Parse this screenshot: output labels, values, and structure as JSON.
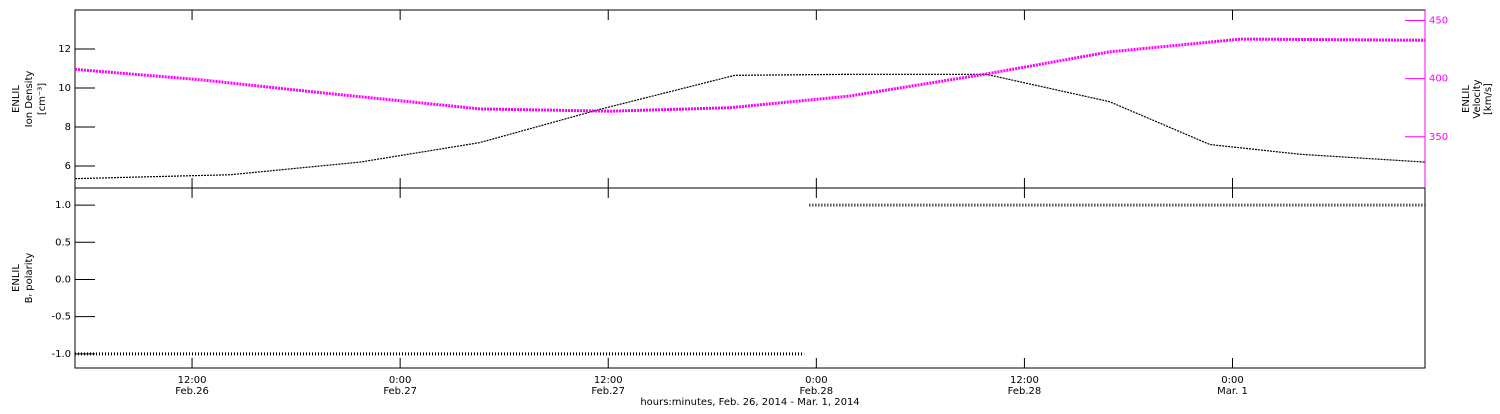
{
  "chart_data": [
    {
      "type": "line",
      "ylabel": [
        "ENLIL",
        "Ion Density",
        "[cm⁻³]"
      ],
      "y2label": [
        "ENLIL",
        "Velocity",
        "[km/s]"
      ],
      "xlim": [
        5.25,
        83.1
      ],
      "ylim": [
        4.87,
        14.0
      ],
      "yticks": [
        6,
        8,
        10,
        12
      ],
      "y2lim": [
        306,
        459
      ],
      "y2ticks": [
        350,
        400,
        450
      ],
      "y2color": "#ff00ff",
      "series": [
        {
          "color": "#000000",
          "x": [
            5.25,
            14.2,
            21.7,
            28.6,
            35.5,
            43.3,
            49.9,
            57.8,
            64.9,
            70.7,
            75.9,
            83.1
          ],
          "values": [
            5.35,
            5.55,
            6.2,
            7.2,
            8.9,
            10.65,
            10.7,
            10.7,
            9.3,
            7.1,
            6.6,
            6.2
          ]
        },
        {
          "color": "#ff00ff",
          "axis": "y2",
          "x": [
            5.25,
            12.5,
            20.0,
            24.0,
            28.6,
            36.1,
            43.0,
            49.9,
            57.8,
            64.9,
            72.5,
            83.1
          ],
          "values": [
            408,
            399,
            387,
            381,
            374,
            372,
            375,
            385,
            404,
            423,
            434,
            433
          ]
        }
      ]
    },
    {
      "type": "line",
      "ylabel": [
        "ENLIL",
        "Bᵣ polarity"
      ],
      "xlabel": "hours:minutes, Feb. 26, 2014 - Mar. 1, 2014",
      "xlim": [
        5.25,
        83.1
      ],
      "xticks": [
        {
          "value": 12,
          "label": "12:00",
          "date": "Feb.26"
        },
        {
          "value": 24,
          "label": "0:00",
          "date": "Feb.27"
        },
        {
          "value": 36,
          "label": "12:00",
          "date": "Feb.27"
        },
        {
          "value": 48,
          "label": "0:00",
          "date": "Feb.28"
        },
        {
          "value": 60,
          "label": "12:00",
          "date": "Feb.28"
        },
        {
          "value": 72,
          "label": "0:00",
          "date": "Mar. 1"
        }
      ],
      "ylim": [
        -1.19,
        1.23
      ],
      "yticks": [
        {
          "value": 1,
          "label": "1.0"
        },
        {
          "value": 0.5,
          "label": "0.5"
        },
        {
          "value": 0,
          "label": "0.0"
        },
        {
          "value": -0.5,
          "label": "-0.5"
        },
        {
          "value": -1,
          "label": "-1.0"
        }
      ],
      "series": [
        {
          "color": "#000000",
          "x": [
            5.25,
            47.3,
            47.45,
            47.6,
            83.1
          ],
          "values": [
            -1,
            -1,
            null,
            1,
            1
          ]
        }
      ]
    }
  ]
}
